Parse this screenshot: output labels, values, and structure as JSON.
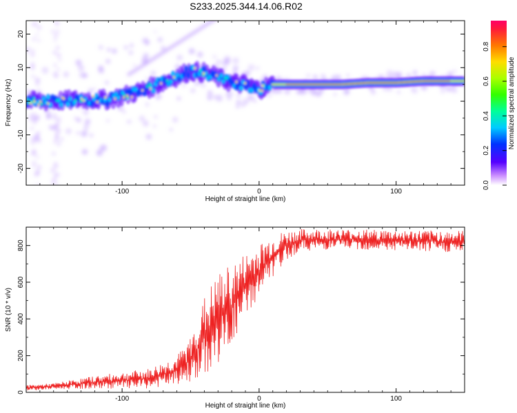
{
  "title": "S233.2025.344.14.06.R02",
  "chart_data": [
    {
      "type": "heatmap",
      "xlabel": "Height of straight line (km)",
      "ylabel": "Frequency (Hz)",
      "xlim": [
        -170,
        150
      ],
      "ylim": [
        -25,
        24
      ],
      "x_ticks": [
        -100,
        0,
        100
      ],
      "y_ticks": [
        -20,
        -10,
        0,
        10,
        20
      ],
      "colorbar": {
        "label": "Normalized spectral amplitude",
        "range": [
          0,
          0.95
        ],
        "ticks": [
          "0.0",
          "0.2",
          "0.4",
          "0.6",
          "0.8"
        ],
        "tick_values": [
          0,
          0.2,
          0.4,
          0.6,
          0.8
        ]
      },
      "ridge": {
        "description_points_x": [
          -170,
          -150,
          -130,
          -110,
          -95,
          -80,
          -65,
          -50,
          -40,
          -30,
          -20,
          -10,
          0,
          10,
          30,
          60,
          80,
          100,
          120,
          150
        ],
        "frequency_hz": [
          0,
          0,
          0.5,
          0.5,
          2,
          4,
          6.5,
          9,
          8.5,
          7,
          5.5,
          5,
          3.5,
          5,
          5,
          5,
          5.5,
          5.5,
          6,
          6
        ]
      }
    },
    {
      "type": "line",
      "xlabel": "Height of straight line (km)",
      "ylabel": "SNR (10 * v/v)",
      "xlim": [
        -170,
        150
      ],
      "ylim": [
        0,
        900
      ],
      "x_ticks": [
        -100,
        0,
        100
      ],
      "y_ticks": [
        0,
        200,
        400,
        600,
        800
      ],
      "series": [
        {
          "name": "SNR",
          "color": "#ee2222",
          "envelope_x": [
            -170,
            -150,
            -120,
            -100,
            -80,
            -60,
            -50,
            -40,
            -30,
            -20,
            -10,
            0,
            10,
            20,
            30,
            60,
            100,
            150
          ],
          "envelope_low": [
            10,
            15,
            20,
            20,
            20,
            40,
            60,
            80,
            150,
            250,
            400,
            520,
            620,
            720,
            770,
            780,
            770,
            760
          ],
          "envelope_high": [
            40,
            50,
            90,
            110,
            130,
            200,
            300,
            520,
            650,
            700,
            760,
            810,
            860,
            880,
            890,
            890,
            885,
            880
          ]
        }
      ]
    }
  ],
  "colors": {
    "line": "#ee2222",
    "axis": "#000000"
  }
}
